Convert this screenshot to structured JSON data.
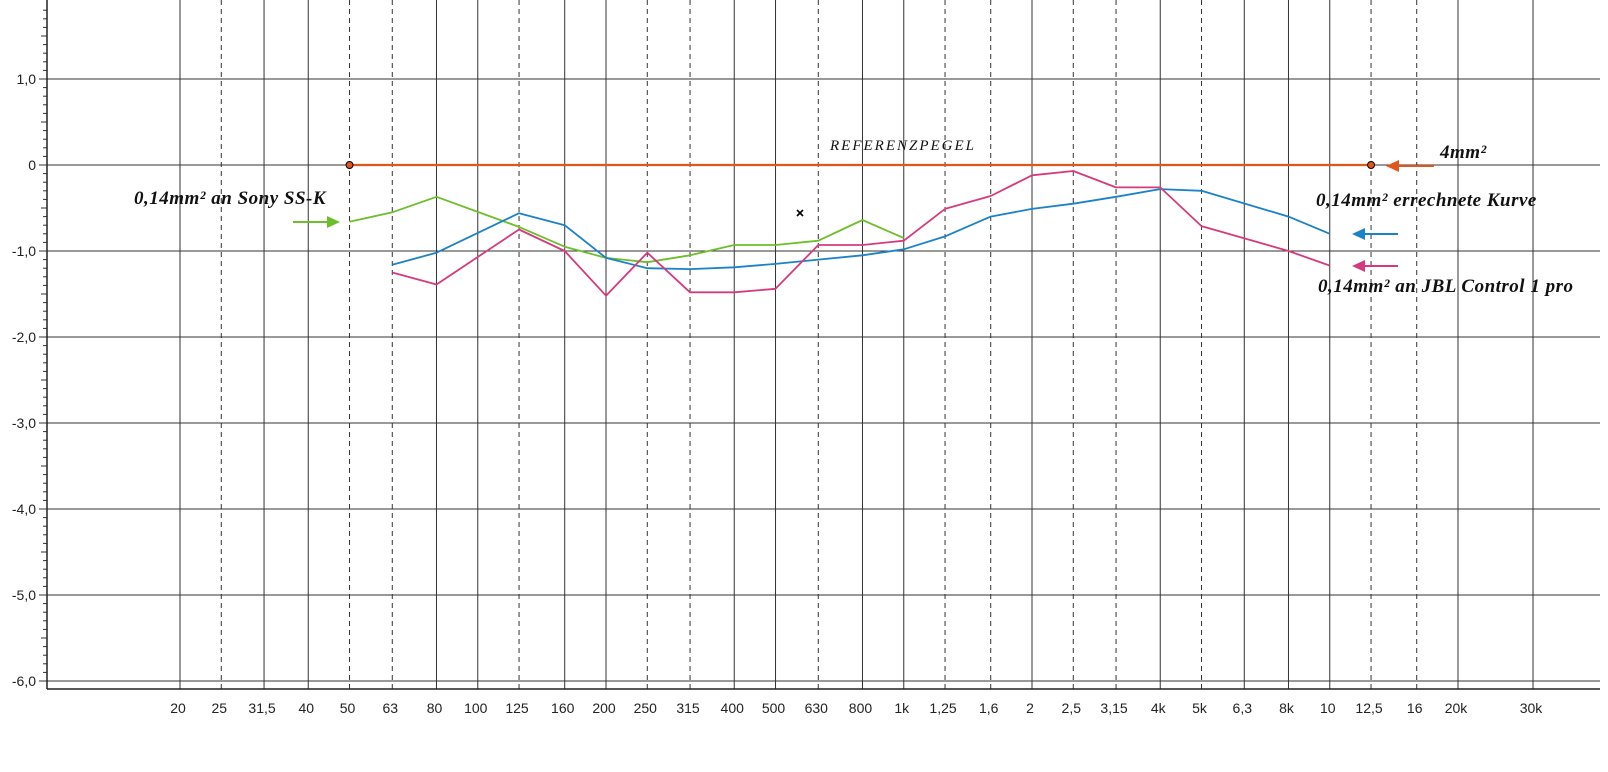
{
  "chart_data": {
    "type": "line",
    "x_scale": "log",
    "y_range": [
      -6.0,
      1.8
    ],
    "x_range": [
      12,
      40000
    ],
    "y_ticks": [
      {
        "v": 1.0,
        "label": "1,0"
      },
      {
        "v": 0,
        "label": "0"
      },
      {
        "v": -1.0,
        "label": "-1,0"
      },
      {
        "v": -2.0,
        "label": "-2,0"
      },
      {
        "v": -3.0,
        "label": "-3,0"
      },
      {
        "v": -4.0,
        "label": "-4,0"
      },
      {
        "v": -5.0,
        "label": "-5,0"
      },
      {
        "v": -6.0,
        "label": "-6,0"
      }
    ],
    "x_ticks": [
      {
        "f": 20,
        "label": "20",
        "style": "solid"
      },
      {
        "f": 25,
        "label": "25",
        "style": "dashed"
      },
      {
        "f": 31.5,
        "label": "31,5",
        "style": "solid"
      },
      {
        "f": 40,
        "label": "40",
        "style": "solid"
      },
      {
        "f": 50,
        "label": "50",
        "style": "dashed"
      },
      {
        "f": 63,
        "label": "63",
        "style": "dashed"
      },
      {
        "f": 80,
        "label": "80",
        "style": "solid"
      },
      {
        "f": 100,
        "label": "100",
        "style": "solid"
      },
      {
        "f": 125,
        "label": "125",
        "style": "dashed"
      },
      {
        "f": 160,
        "label": "160",
        "style": "solid"
      },
      {
        "f": 200,
        "label": "200",
        "style": "solid"
      },
      {
        "f": 250,
        "label": "250",
        "style": "dashed"
      },
      {
        "f": 315,
        "label": "315",
        "style": "dashed"
      },
      {
        "f": 400,
        "label": "400",
        "style": "solid"
      },
      {
        "f": 500,
        "label": "500",
        "style": "solid"
      },
      {
        "f": 630,
        "label": "630",
        "style": "dashed"
      },
      {
        "f": 800,
        "label": "800",
        "style": "solid"
      },
      {
        "f": 1000,
        "label": "1k",
        "style": "solid"
      },
      {
        "f": 1250,
        "label": "1,25",
        "style": "dashed"
      },
      {
        "f": 1600,
        "label": "1,6",
        "style": "dashed"
      },
      {
        "f": 2000,
        "label": "2",
        "style": "solid"
      },
      {
        "f": 2500,
        "label": "2,5",
        "style": "dashed"
      },
      {
        "f": 3150,
        "label": "3,15",
        "style": "dashed"
      },
      {
        "f": 4000,
        "label": "4k",
        "style": "solid"
      },
      {
        "f": 5000,
        "label": "5k",
        "style": "dashed"
      },
      {
        "f": 6300,
        "label": "6,3",
        "style": "solid"
      },
      {
        "f": 8000,
        "label": "8k",
        "style": "solid"
      },
      {
        "f": 10000,
        "label": "10",
        "style": "solid"
      },
      {
        "f": 12500,
        "label": "12,5",
        "style": "dashed"
      },
      {
        "f": 16000,
        "label": "16",
        "style": "dashed"
      },
      {
        "f": 20000,
        "label": "20k",
        "style": "solid"
      },
      {
        "f": 30000,
        "label": "30k",
        "style": "solid"
      }
    ],
    "series": [
      {
        "key": "reference",
        "color": "#e0561b",
        "x": [
          50,
          12500
        ],
        "y": [
          0,
          0
        ]
      },
      {
        "key": "sony",
        "color": "#6cbf2a",
        "x": [
          50,
          63,
          80,
          125,
          160,
          200,
          250,
          315,
          400,
          500,
          630,
          800,
          1000
        ],
        "y": [
          -0.66,
          -0.55,
          -0.37,
          -0.72,
          -0.95,
          -1.08,
          -1.13,
          -1.05,
          -0.93,
          -0.93,
          -0.88,
          -0.64,
          -0.85
        ]
      },
      {
        "key": "computed",
        "color": "#1a82c8",
        "x": [
          63,
          80,
          125,
          160,
          200,
          250,
          315,
          400,
          500,
          630,
          800,
          1000,
          1250,
          1600,
          2000,
          2500,
          3150,
          4000,
          5000,
          8000,
          10000
        ],
        "y": [
          -1.16,
          -1.02,
          -0.56,
          -0.7,
          -1.08,
          -1.2,
          -1.21,
          -1.19,
          -1.15,
          -1.1,
          -1.05,
          -0.98,
          -0.83,
          -0.6,
          -0.51,
          -0.45,
          -0.37,
          -0.28,
          -0.3,
          -0.6,
          -0.8
        ]
      },
      {
        "key": "jbl",
        "color": "#d63a7e",
        "x": [
          63,
          80,
          125,
          160,
          200,
          250,
          315,
          400,
          500,
          630,
          800,
          1000,
          1250,
          1600,
          2000,
          2500,
          3150,
          4000,
          5000,
          8000,
          10000
        ],
        "y": [
          -1.25,
          -1.39,
          -0.75,
          -1.0,
          -1.52,
          -1.02,
          -1.48,
          -1.48,
          -1.44,
          -0.93,
          -0.93,
          -0.88,
          -0.51,
          -0.36,
          -0.12,
          -0.07,
          -0.26,
          -0.26,
          -0.71,
          -1.0,
          -1.17
        ]
      }
    ],
    "reference_label": "REFERENZPEGEL",
    "annotations": {
      "ref_right": "4mm²",
      "sony": "0,14mm² an Sony SS-K",
      "computed": "0,14mm² errechnete Kurve",
      "jbl": "0,14mm² an JBL Control 1 pro"
    },
    "grid": true
  }
}
